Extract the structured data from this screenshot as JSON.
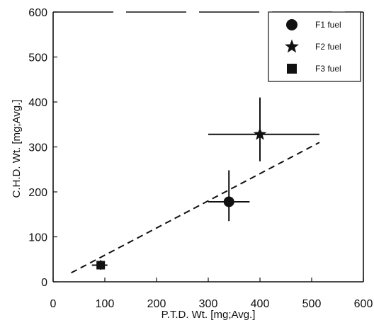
{
  "chart_data": {
    "type": "scatter",
    "xlabel": "P.T.D. Wt. [mg;Avg.]",
    "ylabel": "C.H.D. Wt. [mg;Avg.]",
    "xlim": [
      0,
      600
    ],
    "ylim": [
      0,
      600
    ],
    "xticks": [
      "0",
      "100",
      "200",
      "300",
      "400",
      "500",
      "600"
    ],
    "yticks": [
      "0",
      "100",
      "200",
      "300",
      "400",
      "500",
      "600"
    ],
    "grid": false,
    "legend_position": "top-right",
    "series": [
      {
        "name": "F1 fuel",
        "marker": "circle",
        "points": [
          {
            "x": 340,
            "y": 178,
            "xerr": [
              300,
              380
            ],
            "yerr": [
              135,
              248
            ]
          }
        ]
      },
      {
        "name": "F2 fuel",
        "marker": "star",
        "points": [
          {
            "x": 400,
            "y": 328,
            "xerr": [
              300,
              515
            ],
            "yerr": [
              268,
              410
            ]
          }
        ]
      },
      {
        "name": "F3 fuel",
        "marker": "square",
        "points": [
          {
            "x": 92,
            "y": 37,
            "xerr": [
              75,
              105
            ],
            "yerr": [
              27,
              48
            ]
          }
        ]
      }
    ],
    "fit_line": {
      "style": "dashed",
      "x": [
        35,
        515
      ],
      "y": [
        20,
        310
      ]
    },
    "colors": {
      "marks": "#111111",
      "background": "#ffffff"
    }
  }
}
